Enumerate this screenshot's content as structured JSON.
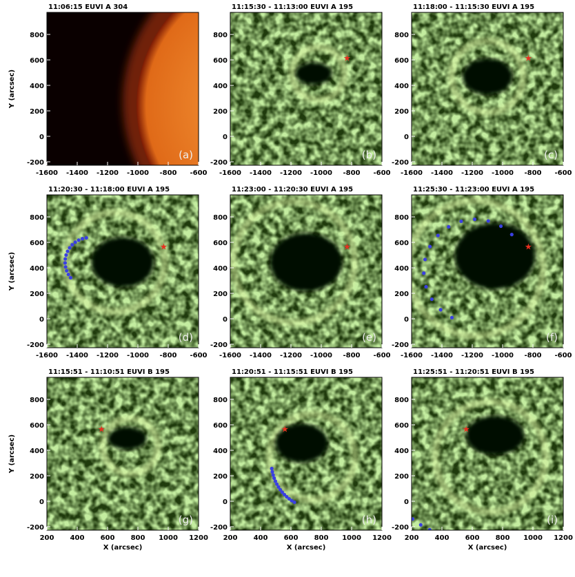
{
  "axes": {
    "x_label": "X (arcsec)",
    "y_label": "Y (arcsec)",
    "x_range_a": [
      -1600,
      -600
    ],
    "x_ticks_a": [
      -1600,
      -1400,
      -1200,
      -1000,
      -800,
      -600
    ],
    "x_range_b": [
      200,
      1200
    ],
    "x_ticks_b": [
      200,
      400,
      600,
      800,
      1000,
      1200
    ],
    "y_range": [
      -227,
      973
    ],
    "y_ticks": [
      -200,
      0,
      200,
      400,
      600,
      800
    ]
  },
  "panels": [
    {
      "title": "11:06:15   EUVI A  304",
      "label": "(a)"
    },
    {
      "title": "11:15:30 - 11:13:00 EUVI A   195",
      "label": "(b)"
    },
    {
      "title": "11:18:00 - 11:15:30 EUVI A   195",
      "label": "(c)"
    },
    {
      "title": "11:20:30 - 11:18:00 EUVI A   195",
      "label": "(d)"
    },
    {
      "title": "11:23:00 - 11:20:30 EUVI A   195",
      "label": "(e)"
    },
    {
      "title": "11:25:30 - 11:23:00 EUVI A   195",
      "label": "(f)"
    },
    {
      "title": "11:15:51 - 11:10:51 EUVI B   195",
      "label": "(g)"
    },
    {
      "title": "11:20:51 - 11:15:51 EUVI B   195",
      "label": "(h)"
    },
    {
      "title": "11:25:51 - 11:20:51 EUVI B   195",
      "label": "(i)"
    }
  ]
}
